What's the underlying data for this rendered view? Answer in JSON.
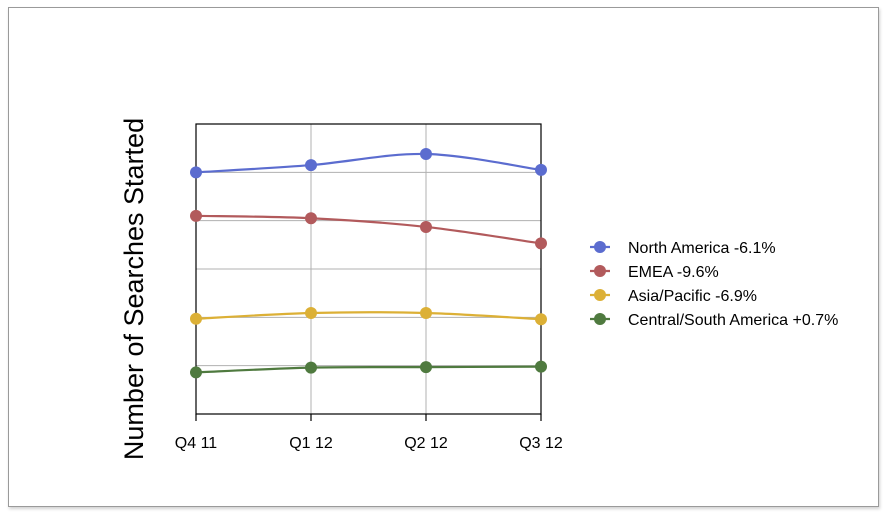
{
  "chart_data": {
    "type": "line",
    "title": "",
    "xlabel": "",
    "ylabel": "Number of Searches Started",
    "categories": [
      "Q4 11",
      "Q1 12",
      "Q2 12",
      "Q3 12"
    ],
    "ylim": [
      0,
      6
    ],
    "y_ticks_labeled": false,
    "grid": true,
    "legend_position": "right",
    "series": [
      {
        "name": "North America -6.1%",
        "color": "#5b6ccf",
        "values": [
          5.0,
          5.15,
          5.38,
          5.05
        ]
      },
      {
        "name": "EMEA -9.6%",
        "color": "#b25a5c",
        "values": [
          4.1,
          4.05,
          3.87,
          3.53
        ]
      },
      {
        "name": "Asia/Pacific -6.9%",
        "color": "#dcb036",
        "values": [
          1.97,
          2.09,
          2.09,
          1.96
        ]
      },
      {
        "name": "Central/South America +0.7%",
        "color": "#4f7a3f",
        "values": [
          0.86,
          0.96,
          0.97,
          0.98
        ]
      }
    ]
  }
}
